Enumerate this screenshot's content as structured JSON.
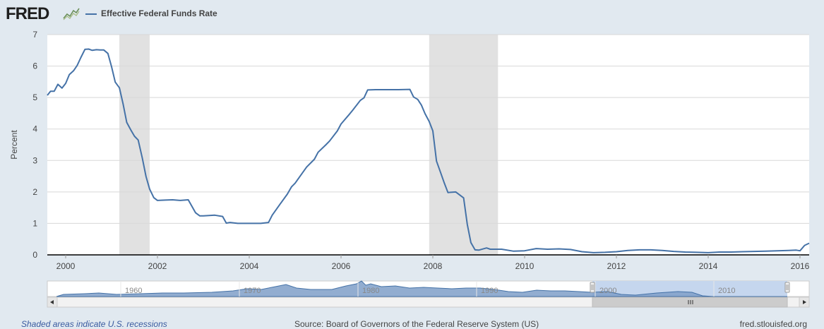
{
  "header": {
    "logo_text": "FRED",
    "logo_icon": "fred-chart-logo-icon",
    "legend_label": "Effective Federal Funds Rate"
  },
  "colors": {
    "series": "#4572a7",
    "recession": "#e1e1e1",
    "background": "#e1e9f0",
    "plot": "#ffffff",
    "navigator_fill": "#7f9fc8",
    "navigator_selected": "#c5d6ee"
  },
  "chart_data": {
    "type": "line",
    "title": "",
    "xlabel": "",
    "ylabel": "Percent",
    "xlim": [
      1999.6,
      2016.2
    ],
    "ylim": [
      0,
      7
    ],
    "yticks": [
      0,
      1,
      2,
      3,
      4,
      5,
      6,
      7
    ],
    "xticks": [
      "2000",
      "2002",
      "2004",
      "2006",
      "2008",
      "2010",
      "2012",
      "2014",
      "2016"
    ],
    "grid": true,
    "legend_position": "top-left",
    "recessions": [
      [
        2001.17,
        2001.83
      ],
      [
        2007.92,
        2009.42
      ]
    ],
    "series": [
      {
        "name": "Effective Federal Funds Rate",
        "x": [
          1999.6,
          1999.67,
          1999.75,
          1999.83,
          1999.92,
          2000.0,
          2000.08,
          2000.17,
          2000.25,
          2000.33,
          2000.42,
          2000.5,
          2000.58,
          2000.67,
          2000.75,
          2000.83,
          2000.92,
          2001.0,
          2001.08,
          2001.17,
          2001.25,
          2001.33,
          2001.42,
          2001.5,
          2001.58,
          2001.67,
          2001.75,
          2001.83,
          2001.92,
          2002.0,
          2002.17,
          2002.33,
          2002.5,
          2002.67,
          2002.83,
          2002.92,
          2003.0,
          2003.25,
          2003.42,
          2003.5,
          2003.58,
          2003.75,
          2004.0,
          2004.25,
          2004.42,
          2004.5,
          2004.67,
          2004.83,
          2004.92,
          2005.0,
          2005.17,
          2005.25,
          2005.42,
          2005.5,
          2005.67,
          2005.75,
          2005.92,
          2006.0,
          2006.17,
          2006.25,
          2006.42,
          2006.5,
          2006.58,
          2006.75,
          2007.0,
          2007.25,
          2007.5,
          2007.58,
          2007.67,
          2007.75,
          2007.83,
          2007.92,
          2008.0,
          2008.08,
          2008.17,
          2008.25,
          2008.33,
          2008.5,
          2008.67,
          2008.75,
          2008.83,
          2008.92,
          2009.0,
          2009.17,
          2009.25,
          2009.5,
          2009.75,
          2010.0,
          2010.25,
          2010.5,
          2010.75,
          2011.0,
          2011.25,
          2011.5,
          2011.75,
          2012.0,
          2012.25,
          2012.5,
          2012.75,
          2013.0,
          2013.25,
          2013.5,
          2013.75,
          2014.0,
          2014.25,
          2014.5,
          2014.75,
          2015.0,
          2015.25,
          2015.5,
          2015.75,
          2015.92,
          2016.0,
          2016.1,
          2016.2
        ],
        "y": [
          5.07,
          5.2,
          5.2,
          5.42,
          5.3,
          5.45,
          5.73,
          5.85,
          6.02,
          6.27,
          6.53,
          6.54,
          6.5,
          6.52,
          6.51,
          6.51,
          6.4,
          5.98,
          5.49,
          5.31,
          4.8,
          4.21,
          3.97,
          3.77,
          3.65,
          3.07,
          2.49,
          2.09,
          1.82,
          1.73,
          1.74,
          1.75,
          1.73,
          1.75,
          1.34,
          1.24,
          1.24,
          1.26,
          1.22,
          1.01,
          1.03,
          1.0,
          1.0,
          1.0,
          1.03,
          1.26,
          1.61,
          1.93,
          2.16,
          2.28,
          2.63,
          2.79,
          3.04,
          3.26,
          3.5,
          3.62,
          3.94,
          4.16,
          4.45,
          4.59,
          4.91,
          4.99,
          5.24,
          5.25,
          5.25,
          5.25,
          5.26,
          5.02,
          4.94,
          4.76,
          4.49,
          4.24,
          3.94,
          2.98,
          2.61,
          2.28,
          1.98,
          2.0,
          1.81,
          0.97,
          0.39,
          0.16,
          0.15,
          0.22,
          0.18,
          0.18,
          0.12,
          0.13,
          0.2,
          0.18,
          0.19,
          0.17,
          0.1,
          0.07,
          0.08,
          0.1,
          0.14,
          0.16,
          0.16,
          0.14,
          0.11,
          0.09,
          0.08,
          0.07,
          0.09,
          0.09,
          0.1,
          0.11,
          0.12,
          0.13,
          0.14,
          0.15,
          0.13,
          0.3,
          0.37
        ]
      }
    ]
  },
  "navigator": {
    "ticks": [
      "1960",
      "1970",
      "1980",
      "1990",
      "2000",
      "2010"
    ],
    "handle_left_icon": "range-handle-left-icon",
    "handle_right_icon": "range-handle-right-icon",
    "scroll_left_icon": "scroll-left-arrow-icon",
    "scroll_right_icon": "scroll-right-arrow-icon",
    "scroll_thumb_icon": "scroll-thumb-grip-icon"
  },
  "footer": {
    "recession_note": "Shaded areas indicate U.S. recessions",
    "source": "Source: Board of Governors of the Federal Reserve System (US)",
    "site": "fred.stlouisfed.org"
  }
}
